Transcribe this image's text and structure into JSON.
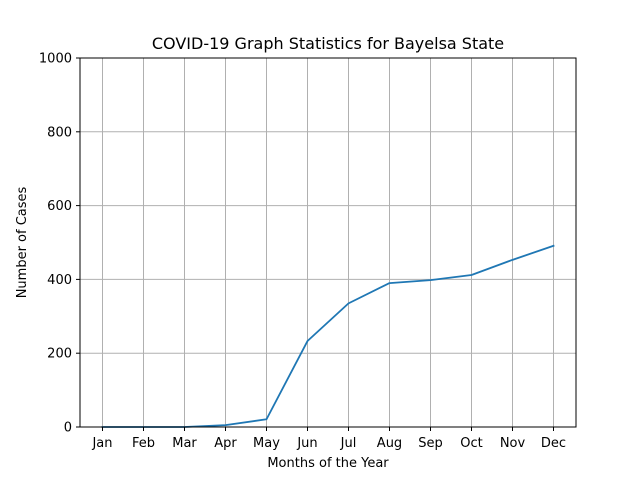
{
  "chart_data": {
    "type": "line",
    "title": "COVID-19 Graph Statistics for Bayelsa State",
    "xlabel": "Months of the Year",
    "ylabel": "Number of Cases",
    "categories": [
      "Jan",
      "Feb",
      "Mar",
      "Apr",
      "May",
      "Jun",
      "Jul",
      "Aug",
      "Sep",
      "Oct",
      "Nov",
      "Dec"
    ],
    "series": [
      {
        "values": [
          0,
          0,
          0,
          5,
          21,
          233,
          335,
          390,
          398,
          412,
          453,
          491
        ],
        "color": "#1f77b4"
      }
    ],
    "ylim": [
      0,
      1000
    ],
    "yticks": [
      0,
      200,
      400,
      600,
      800,
      1000
    ],
    "grid": true,
    "legend": "none"
  }
}
